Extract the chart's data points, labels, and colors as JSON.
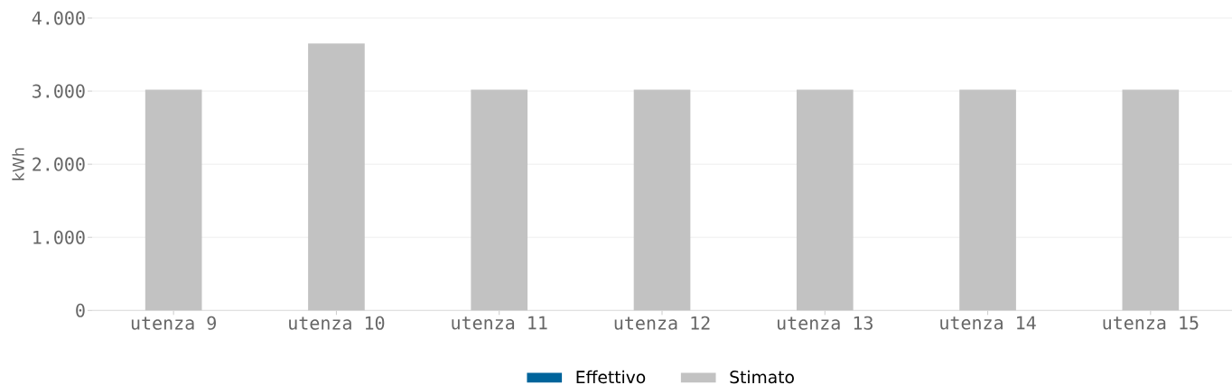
{
  "chart_data": {
    "type": "bar",
    "ylabel": "kWh",
    "categories": [
      "utenza 9",
      "utenza 10",
      "utenza 11",
      "utenza 12",
      "utenza 13",
      "utenza 14",
      "utenza 15"
    ],
    "series": [
      {
        "name": "Effettivo",
        "color": "#00649b",
        "values": [
          null,
          null,
          null,
          null,
          null,
          null,
          null
        ]
      },
      {
        "name": "Stimato",
        "color": "#c2c2c2",
        "values": [
          3020,
          3650,
          3020,
          3020,
          3020,
          3020,
          3020
        ]
      }
    ],
    "stacked": true,
    "ylim": [
      0,
      4000
    ],
    "yticks": [
      0,
      {
        "value": 1000,
        "label": "1.000"
      },
      {
        "value": 2000,
        "label": "2.000"
      },
      {
        "value": 3000,
        "label": "3.000"
      },
      {
        "value": 4000,
        "label": "4.000"
      }
    ],
    "grid": "y",
    "legend": "bottom"
  }
}
